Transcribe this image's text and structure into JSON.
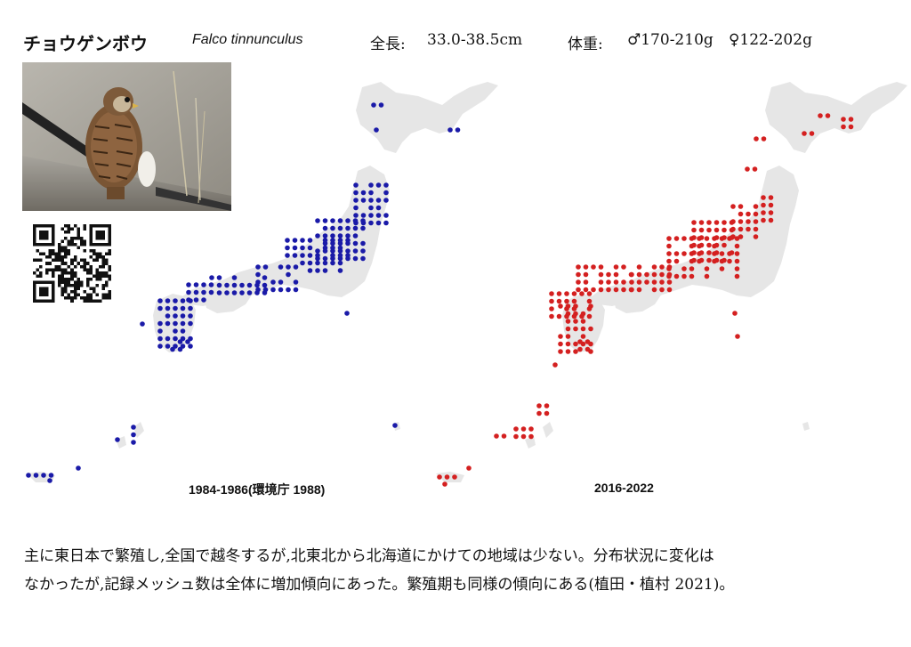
{
  "header": {
    "name_jp": "チョウゲンボウ",
    "name_sci": "Falco tinnunculus",
    "length_label": "全長:",
    "length_value": "33.0-38.5cm",
    "weight_label": "体重:",
    "weight_male": "♂170-210g",
    "weight_female": "♀122-202g"
  },
  "maps": [
    {
      "caption": "1984-1986(環境庁 1988)",
      "dot_color": "#1a1aa8"
    },
    {
      "caption": "2016-2022",
      "dot_color": "#d42020"
    }
  ],
  "description": {
    "line1": "主に東日本で繁殖し,全国で越冬するが,北東北から北海道にかけての地域は少ない。分布状況に変化は",
    "line2": "なかったが,記録メッシュ数は全体に増加傾向にあった。繁殖期も同様の傾向にある(植田・植村 2021)。"
  },
  "colors": {
    "land": "#e6e6e6",
    "text": "#111111"
  }
}
